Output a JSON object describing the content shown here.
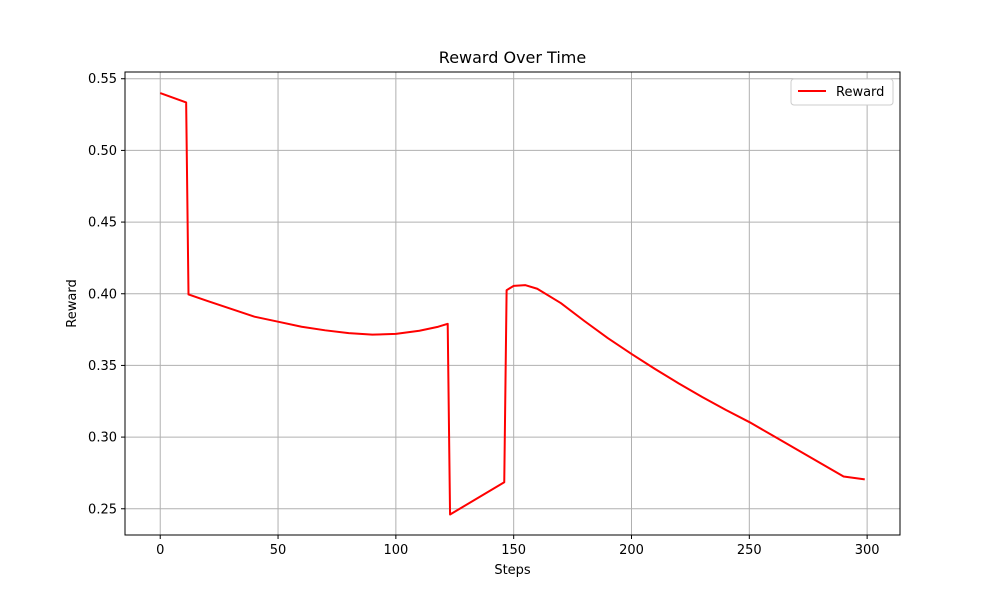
{
  "chart_data": {
    "type": "line",
    "title": "Reward Over Time",
    "xlabel": "Steps",
    "ylabel": "Reward",
    "xlim": [
      -14.95,
      313.95
    ],
    "ylim": [
      0.2317,
      0.5547
    ],
    "xticks": [
      0,
      50,
      100,
      150,
      200,
      250,
      300
    ],
    "yticks": [
      0.25,
      0.3,
      0.35,
      0.4,
      0.45,
      0.5,
      0.55
    ],
    "xtick_labels": [
      "0",
      "50",
      "100",
      "150",
      "200",
      "250",
      "300"
    ],
    "ytick_labels": [
      "0.25",
      "0.30",
      "0.35",
      "0.40",
      "0.45",
      "0.50",
      "0.55"
    ],
    "grid": true,
    "legend_position": "top-right",
    "series": [
      {
        "name": "Reward",
        "color": "#ff0000",
        "x": [
          0,
          11,
          12,
          20,
          30,
          40,
          50,
          60,
          70,
          80,
          90,
          100,
          110,
          118,
          122,
          123,
          146,
          147,
          150,
          155,
          160,
          170,
          180,
          190,
          200,
          210,
          220,
          230,
          240,
          250,
          260,
          270,
          280,
          290,
          299
        ],
        "y": [
          0.54,
          0.5335,
          0.3995,
          0.395,
          0.3895,
          0.384,
          0.3805,
          0.377,
          0.3745,
          0.3725,
          0.3715,
          0.372,
          0.3742,
          0.377,
          0.379,
          0.246,
          0.2685,
          0.4025,
          0.4055,
          0.406,
          0.4035,
          0.3935,
          0.381,
          0.369,
          0.358,
          0.3475,
          0.3375,
          0.328,
          0.319,
          0.3105,
          0.301,
          0.2915,
          0.282,
          0.2725,
          0.2705
        ]
      }
    ]
  }
}
